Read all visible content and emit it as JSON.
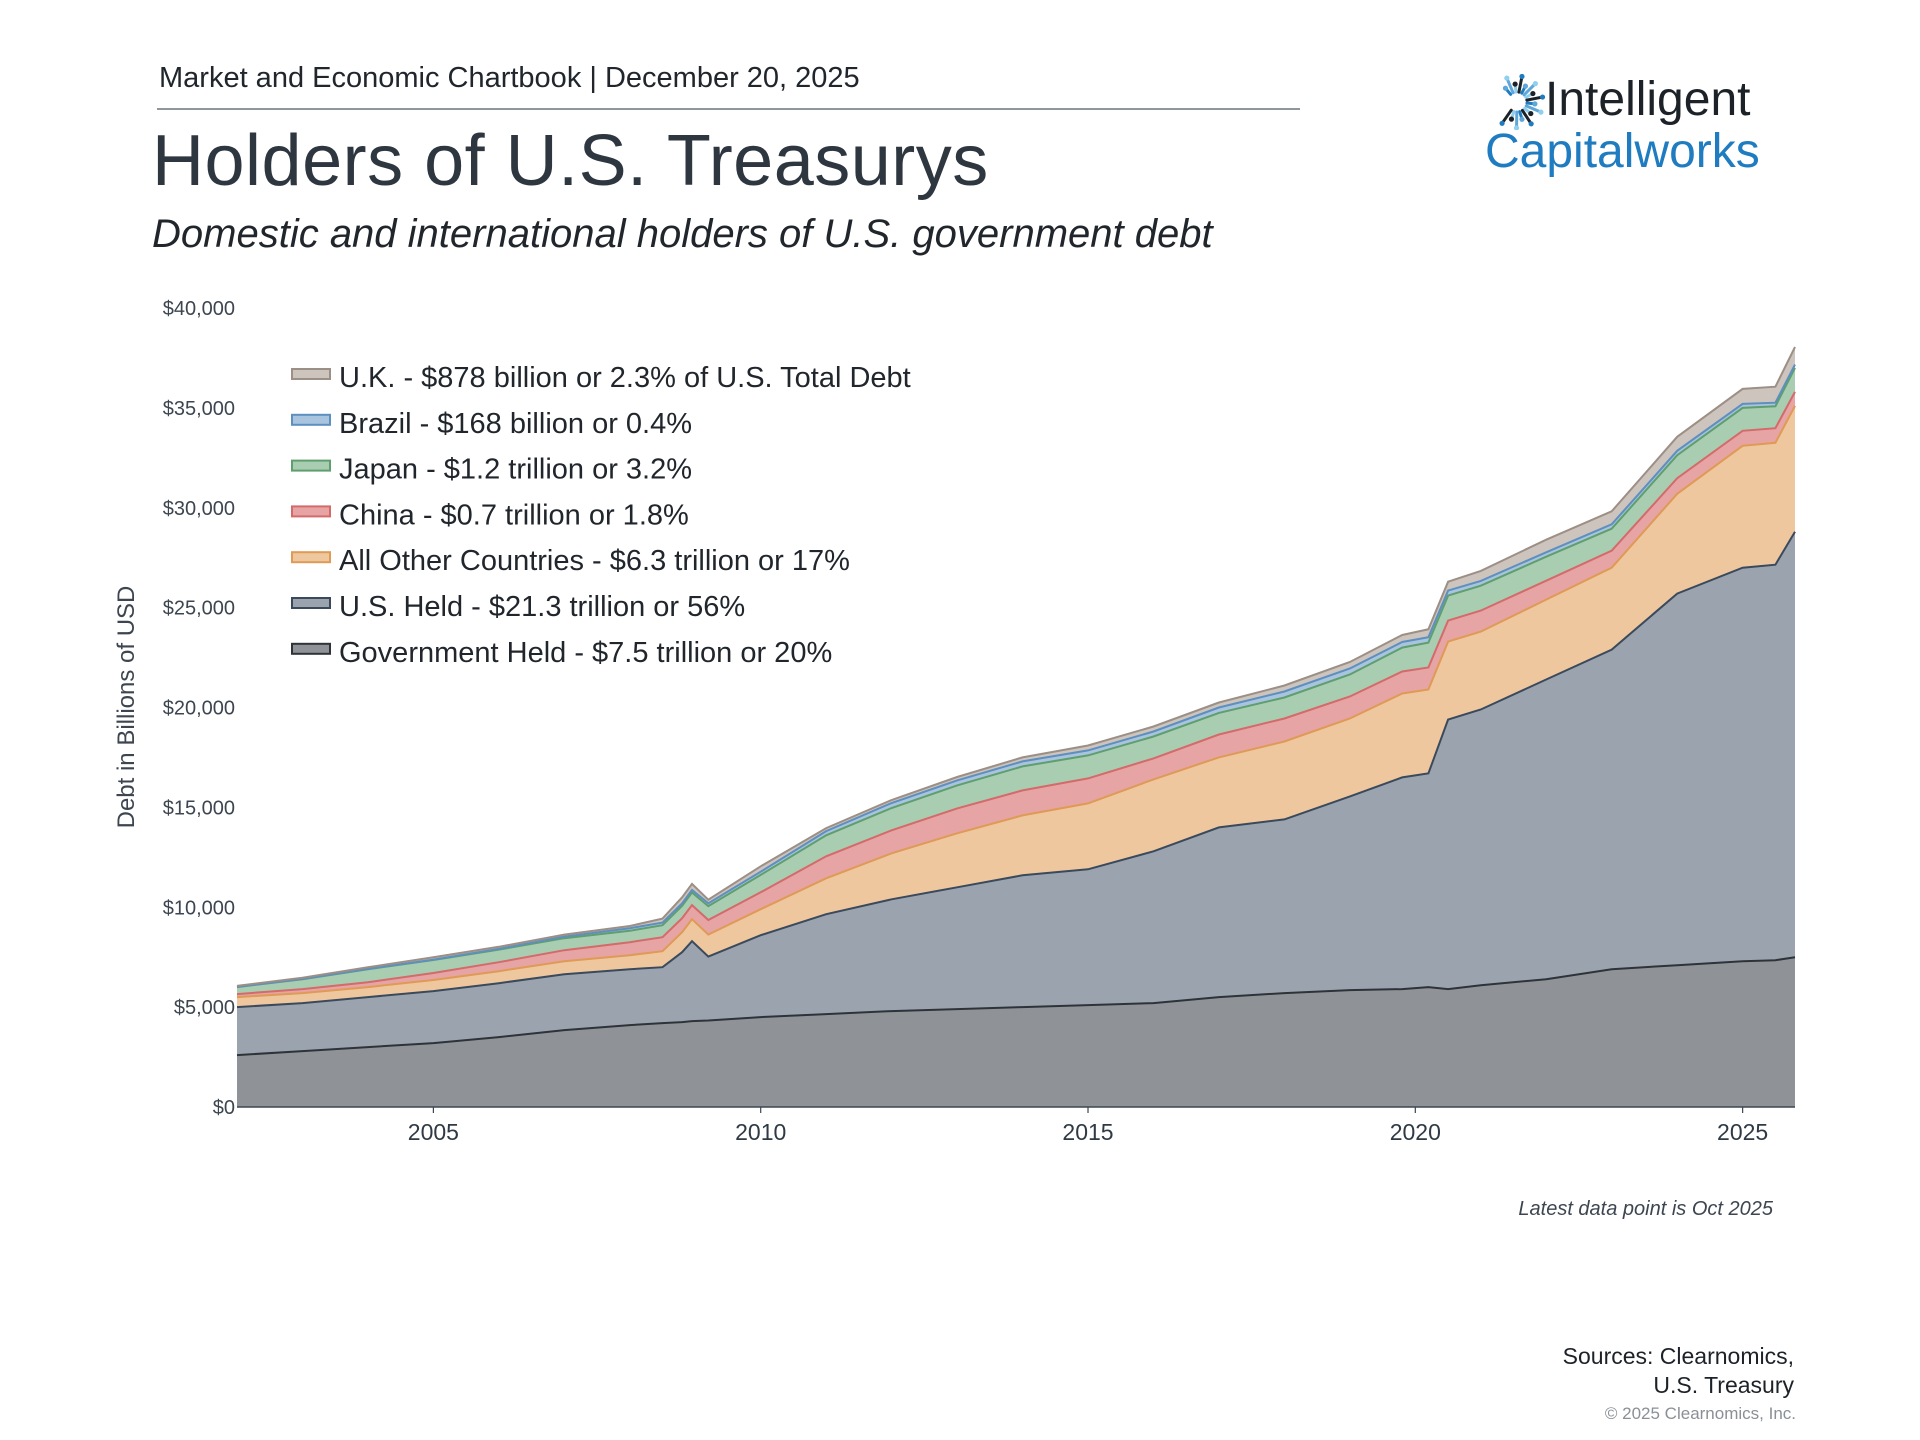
{
  "header": {
    "chartbook": "Market and Economic Chartbook | December 20, 2025",
    "title": "Holders of U.S. Treasurys",
    "subtitle": "Domestic and international holders of U.S. government debt"
  },
  "logo": {
    "line1": "Intelligent",
    "line2": "Capitalworks",
    "brand_color": "#1f7cc0",
    "mark_icon": "sunburst-c-icon"
  },
  "footer": {
    "note": "Latest data point is Oct 2025",
    "sources_line1": "Sources: Clearnomics,",
    "sources_line2": "U.S. Treasury",
    "copyright": "© 2025 Clearnomics, Inc."
  },
  "chart_data": {
    "type": "area",
    "stacked": true,
    "ylabel": "Debt in Billions of USD",
    "xlabel": "",
    "ylim": [
      0,
      40000
    ],
    "xlim": [
      "2002-01",
      "2025-10"
    ],
    "y_ticks": [
      "$0",
      "$5,000",
      "$10,000",
      "$15,000",
      "$20,000",
      "$25,000",
      "$30,000",
      "$35,000",
      "$40,000"
    ],
    "y_tick_values": [
      0,
      5000,
      10000,
      15000,
      20000,
      25000,
      30000,
      35000,
      40000
    ],
    "x_ticks": [
      "2005",
      "2010",
      "2015",
      "2020",
      "2025"
    ],
    "x_tick_values": [
      2005,
      2010,
      2015,
      2020,
      2025
    ],
    "grid": false,
    "legend_position": "top-left",
    "x": [
      2002.0,
      2003.0,
      2004.0,
      2005.0,
      2006.0,
      2007.0,
      2008.0,
      2008.5,
      2008.8,
      2008.95,
      2009.2,
      2010.0,
      2011.0,
      2012.0,
      2013.0,
      2014.0,
      2015.0,
      2016.0,
      2017.0,
      2018.0,
      2019.0,
      2019.8,
      2020.2,
      2020.5,
      2021.0,
      2022.0,
      2023.0,
      2024.0,
      2025.0,
      2025.5,
      2025.8
    ],
    "series": [
      {
        "name": "Government Held - $7.5 trillion or 20%",
        "color": "#8f9398",
        "line": "#2e3339",
        "values": [
          2600,
          2800,
          3000,
          3200,
          3500,
          3850,
          4100,
          4200,
          4250,
          4300,
          4330,
          4500,
          4650,
          4800,
          4900,
          5000,
          5100,
          5200,
          5500,
          5700,
          5850,
          5900,
          6000,
          5900,
          6100,
          6400,
          6900,
          7100,
          7300,
          7350,
          7500
        ]
      },
      {
        "name": "U.S. Held - $21.3 trillion or 56%",
        "color": "#9ba4ae",
        "line": "#3a4a5c",
        "values": [
          2400,
          2400,
          2500,
          2600,
          2700,
          2800,
          2800,
          2800,
          3500,
          4000,
          3200,
          4100,
          5000,
          5600,
          6100,
          6600,
          6800,
          7600,
          8500,
          8700,
          9700,
          10600,
          10700,
          13500,
          13800,
          15000,
          16000,
          18600,
          19700,
          19800,
          21300
        ]
      },
      {
        "name": "All Other Countries - $6.3 trillion or 17%",
        "color": "#eec79e",
        "line": "#df9a55",
        "values": [
          500,
          500,
          500,
          560,
          600,
          650,
          700,
          800,
          1000,
          1100,
          1100,
          1300,
          1800,
          2300,
          2700,
          3000,
          3300,
          3600,
          3500,
          3900,
          3900,
          4200,
          4200,
          3900,
          3900,
          4000,
          4100,
          5000,
          6100,
          6100,
          6300
        ]
      },
      {
        "name": "China - $0.7 trillion or 1.8%",
        "color": "#e6a4a4",
        "line": "#d46a6a",
        "values": [
          150,
          200,
          250,
          350,
          450,
          550,
          650,
          700,
          700,
          710,
          730,
          850,
          1100,
          1150,
          1250,
          1250,
          1250,
          1050,
          1150,
          1150,
          1100,
          1100,
          1100,
          1050,
          1050,
          950,
          850,
          780,
          750,
          730,
          700
        ]
      },
      {
        "name": "Japan - $1.2 trillion or 3.2%",
        "color": "#a9cdb1",
        "line": "#5f9e6e",
        "values": [
          350,
          500,
          650,
          650,
          630,
          600,
          570,
          600,
          620,
          630,
          700,
          870,
          1050,
          1120,
          1150,
          1200,
          1150,
          1100,
          1080,
          1050,
          1100,
          1200,
          1250,
          1250,
          1250,
          1200,
          1100,
          1150,
          1150,
          1100,
          1200
        ]
      },
      {
        "name": "Brazil - $168 billion or 0.4%",
        "color": "#a8c4de",
        "line": "#5d8fbf",
        "values": [
          15,
          15,
          15,
          20,
          40,
          80,
          130,
          130,
          130,
          130,
          140,
          160,
          210,
          250,
          250,
          250,
          250,
          250,
          270,
          300,
          300,
          280,
          270,
          250,
          240,
          220,
          220,
          220,
          200,
          180,
          168
        ]
      },
      {
        "name": "U.K. - $878 billion or 2.3% of U.S. Total Debt",
        "color": "#cdc4be",
        "line": "#9c8f86",
        "values": [
          50,
          60,
          80,
          120,
          100,
          100,
          110,
          200,
          300,
          300,
          180,
          270,
          150,
          150,
          170,
          200,
          250,
          250,
          250,
          300,
          330,
          350,
          400,
          450,
          500,
          630,
          650,
          700,
          750,
          800,
          878
        ]
      }
    ]
  }
}
